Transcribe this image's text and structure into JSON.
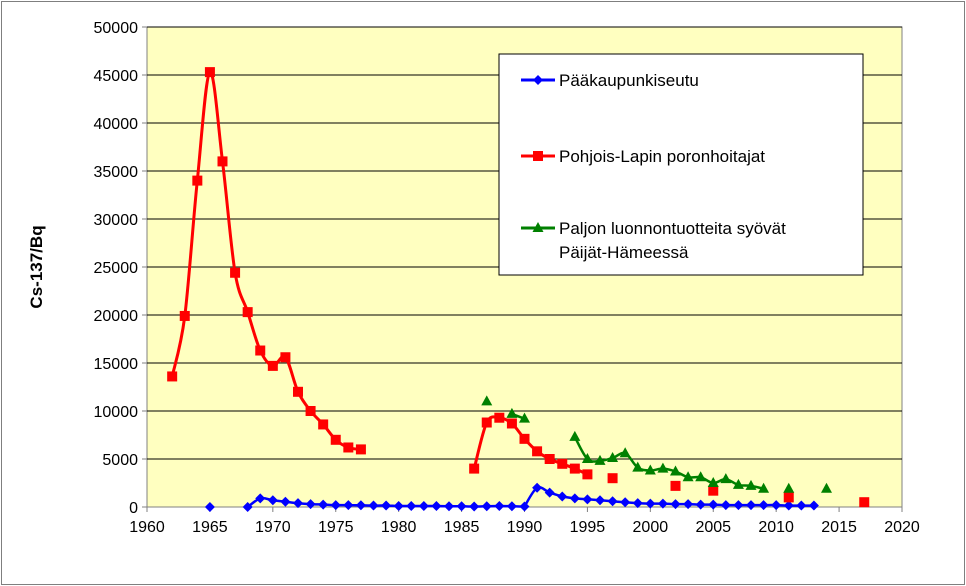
{
  "chart_data": {
    "type": "line",
    "title": "",
    "xlabel": "",
    "ylabel": "Cs-137/Bq",
    "xlim": [
      1960,
      2020
    ],
    "ylim": [
      0,
      50000
    ],
    "x_ticks": [
      "1960",
      "1965",
      "1970",
      "1975",
      "1980",
      "1985",
      "1990",
      "1995",
      "2000",
      "2005",
      "2010",
      "2015",
      "2020"
    ],
    "y_ticks": [
      "0",
      "5000",
      "10000",
      "15000",
      "20000",
      "25000",
      "30000",
      "35000",
      "40000",
      "45000",
      "50000"
    ],
    "grid": "horizontal",
    "legend_position": "top-right",
    "plot_background": "#FFFFC0",
    "series": [
      {
        "name": "Pääkaupunkiseutu",
        "color": "#0000FF",
        "marker": "diamond",
        "points": [
          [
            1965,
            0
          ],
          [
            1968,
            0
          ],
          [
            1969,
            900
          ],
          [
            1970,
            700
          ],
          [
            1971,
            550
          ],
          [
            1972,
            400
          ],
          [
            1973,
            300
          ],
          [
            1974,
            250
          ],
          [
            1975,
            200
          ],
          [
            1976,
            200
          ],
          [
            1977,
            180
          ],
          [
            1978,
            150
          ],
          [
            1979,
            150
          ],
          [
            1980,
            100
          ],
          [
            1981,
            100
          ],
          [
            1982,
            100
          ],
          [
            1983,
            100
          ],
          [
            1984,
            80
          ],
          [
            1985,
            80
          ],
          [
            1986,
            50
          ],
          [
            1987,
            80
          ],
          [
            1988,
            100
          ],
          [
            1989,
            80
          ],
          [
            1990,
            50
          ],
          [
            1991,
            2000
          ],
          [
            1992,
            1500
          ],
          [
            1993,
            1100
          ],
          [
            1994,
            900
          ],
          [
            1995,
            800
          ],
          [
            1996,
            700
          ],
          [
            1997,
            600
          ],
          [
            1998,
            500
          ],
          [
            1999,
            400
          ],
          [
            2000,
            350
          ],
          [
            2001,
            350
          ],
          [
            2002,
            300
          ],
          [
            2003,
            300
          ],
          [
            2004,
            250
          ],
          [
            2005,
            250
          ],
          [
            2006,
            200
          ],
          [
            2007,
            200
          ],
          [
            2008,
            200
          ],
          [
            2009,
            200
          ],
          [
            2010,
            200
          ],
          [
            2011,
            150
          ],
          [
            2012,
            150
          ],
          [
            2013,
            150
          ]
        ],
        "line_segments": [
          [
            1968,
            1990
          ],
          [
            1990,
            2013
          ]
        ]
      },
      {
        "name": "Pohjois-Lapin poronhoitajat",
        "color": "#FF0000",
        "marker": "square",
        "points": [
          [
            1962,
            13600
          ],
          [
            1963,
            19900
          ],
          [
            1964,
            34000
          ],
          [
            1965,
            45300
          ],
          [
            1966,
            36000
          ],
          [
            1967,
            24400
          ],
          [
            1968,
            20300
          ],
          [
            1969,
            16300
          ],
          [
            1970,
            14700
          ],
          [
            1971,
            15600
          ],
          [
            1972,
            12000
          ],
          [
            1973,
            10000
          ],
          [
            1974,
            8600
          ],
          [
            1975,
            7000
          ],
          [
            1976,
            6200
          ],
          [
            1977,
            6000
          ],
          [
            1986,
            4000
          ],
          [
            1987,
            8800
          ],
          [
            1988,
            9300
          ],
          [
            1989,
            8700
          ],
          [
            1990,
            7100
          ],
          [
            1991,
            5800
          ],
          [
            1992,
            5000
          ],
          [
            1993,
            4500
          ],
          [
            1994,
            4000
          ],
          [
            1995,
            3400
          ],
          [
            1997,
            3000
          ],
          [
            2002,
            2200
          ],
          [
            2005,
            1700
          ],
          [
            2011,
            1000
          ],
          [
            2017,
            500
          ]
        ],
        "line_segments": [
          [
            1962,
            1977
          ],
          [
            1986,
            1995
          ]
        ]
      },
      {
        "name": "Paljon luonnontuotteita syövät Päijät-Hämeessä",
        "color": "#008000",
        "marker": "triangle",
        "points": [
          [
            1987,
            11000
          ],
          [
            1989,
            9700
          ],
          [
            1990,
            9200
          ],
          [
            1994,
            7300
          ],
          [
            1995,
            5000
          ],
          [
            1996,
            4800
          ],
          [
            1997,
            5100
          ],
          [
            1998,
            5600
          ],
          [
            1999,
            4100
          ],
          [
            2000,
            3800
          ],
          [
            2001,
            4000
          ],
          [
            2002,
            3700
          ],
          [
            2003,
            3100
          ],
          [
            2004,
            3100
          ],
          [
            2005,
            2500
          ],
          [
            2006,
            2900
          ],
          [
            2007,
            2300
          ],
          [
            2008,
            2200
          ],
          [
            2009,
            1900
          ],
          [
            2011,
            1900
          ],
          [
            2014,
            1900
          ]
        ],
        "line_segments": [
          [
            1989,
            1990
          ],
          [
            1994,
            2009
          ]
        ]
      }
    ]
  }
}
